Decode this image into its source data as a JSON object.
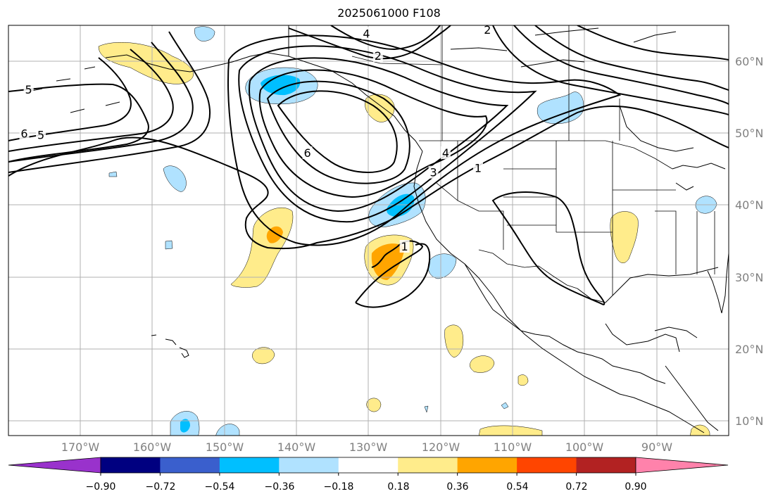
{
  "figure": {
    "title": "2025061000 F108"
  },
  "map": {
    "projection": "PlateCarree",
    "extent": {
      "lon_min": -180,
      "lon_max": -80,
      "lat_min": 8,
      "lat_max": 65
    },
    "gridlines": true,
    "latitude_labels": [
      {
        "lat": 60,
        "text": "60°N"
      },
      {
        "lat": 50,
        "text": "50°N"
      },
      {
        "lat": 40,
        "text": "40°N"
      },
      {
        "lat": 30,
        "text": "30°N"
      },
      {
        "lat": 20,
        "text": "20°N"
      },
      {
        "lat": 10,
        "text": "10°N"
      }
    ],
    "longitude_labels": [
      {
        "lon": -170,
        "text": "170°W"
      },
      {
        "lon": -160,
        "text": "160°W"
      },
      {
        "lon": -150,
        "text": "150°W"
      },
      {
        "lon": -140,
        "text": "140°W"
      },
      {
        "lon": -130,
        "text": "130°W"
      },
      {
        "lon": -120,
        "text": "120°W"
      },
      {
        "lon": -110,
        "text": "110°W"
      },
      {
        "lon": -100,
        "text": "100°W"
      },
      {
        "lon": -90,
        "text": "90°W"
      }
    ],
    "contour_labels": [
      {
        "text": "6",
        "lon": -138.5,
        "lat": 47.2
      },
      {
        "text": "5",
        "lon": -175.5,
        "lat": 49.7
      },
      {
        "text": "6",
        "lon": -177.8,
        "lat": 49.9
      },
      {
        "text": "5",
        "lon": -177.2,
        "lat": 56.0
      },
      {
        "text": "4",
        "lon": -130.3,
        "lat": 63.8
      },
      {
        "text": "2",
        "lon": -128.7,
        "lat": 60.7
      },
      {
        "text": "2",
        "lon": -113.5,
        "lat": 64.3
      },
      {
        "text": "3",
        "lon": -121.0,
        "lat": 44.5
      },
      {
        "text": "4",
        "lon": -119.3,
        "lat": 47.2
      },
      {
        "text": "1",
        "lon": -114.8,
        "lat": 45.1
      },
      {
        "text": "1",
        "lon": -125.0,
        "lat": 34.2
      }
    ],
    "colors": {
      "neg_090": "#9932CC",
      "neg_072": "#000080",
      "neg_054": "#3A5FCD",
      "neg_036": "#00BFFF",
      "neg_018": "#B0E2FF",
      "neutral": "#FFFFFF",
      "pos_018": "#FFEC8B",
      "pos_036": "#FFA500",
      "pos_054": "#FF4500",
      "pos_072": "#B22222",
      "pos_090": "#FF82AB"
    }
  },
  "colorbar": {
    "ticks": [
      "−0.90",
      "−0.72",
      "−0.54",
      "−0.36",
      "−0.18",
      "0.18",
      "0.36",
      "0.54",
      "0.72",
      "0.90"
    ],
    "colors": [
      "#9932CC",
      "#000080",
      "#3A5FCD",
      "#00BFFF",
      "#B0E2FF",
      "#FFFFFF",
      "#FFEC8B",
      "#FFA500",
      "#FF4500",
      "#B22222",
      "#FF82AB"
    ]
  }
}
